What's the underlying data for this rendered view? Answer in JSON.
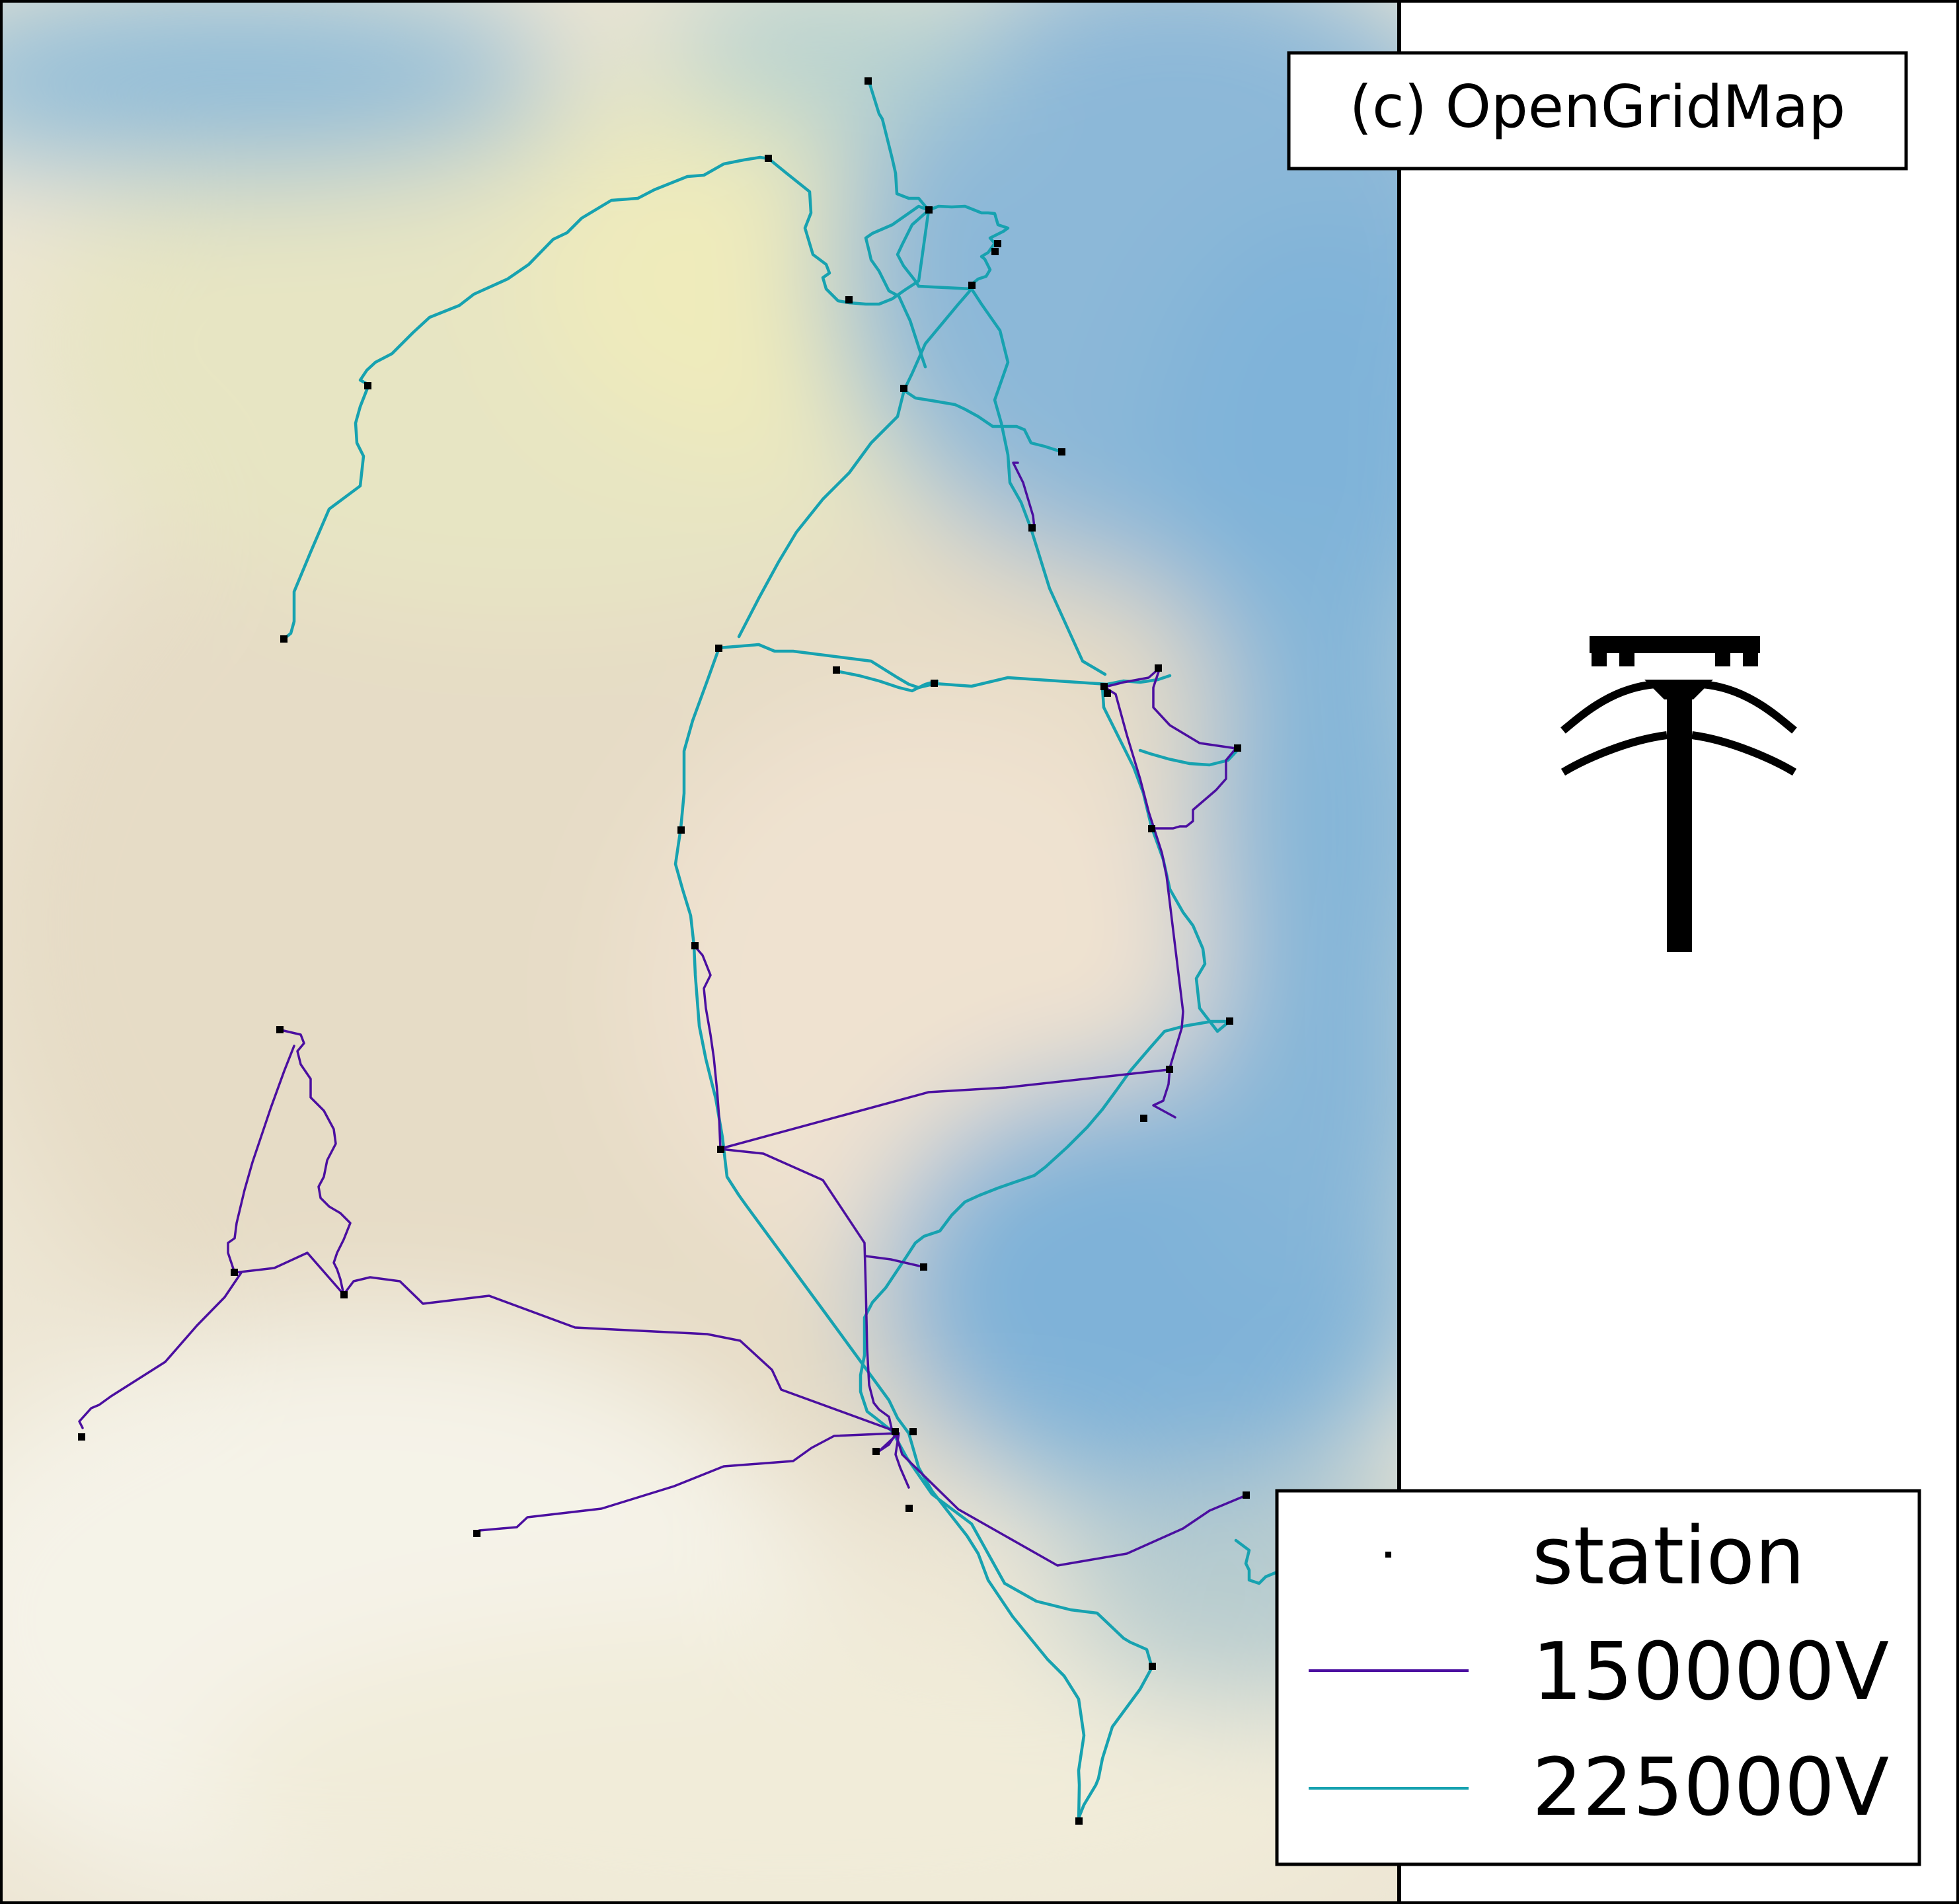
{
  "credit": "(c) OpenGridMap",
  "legend": {
    "items": [
      {
        "label": "station",
        "kind": "marker",
        "color": "#000000"
      },
      {
        "label": "150000V",
        "kind": "line",
        "color": "#4b0fa0"
      },
      {
        "label": "225000V",
        "kind": "line",
        "color": "#17a2b0"
      }
    ]
  },
  "icon": "power-pylon-icon",
  "colors": {
    "water": "#7fb3d8",
    "land_light": "#f2ede0",
    "land_yellow": "#eeeabb",
    "line_150kv": "#4b0fa0",
    "line_225kv": "#17a2b0",
    "station": "#000000"
  }
}
